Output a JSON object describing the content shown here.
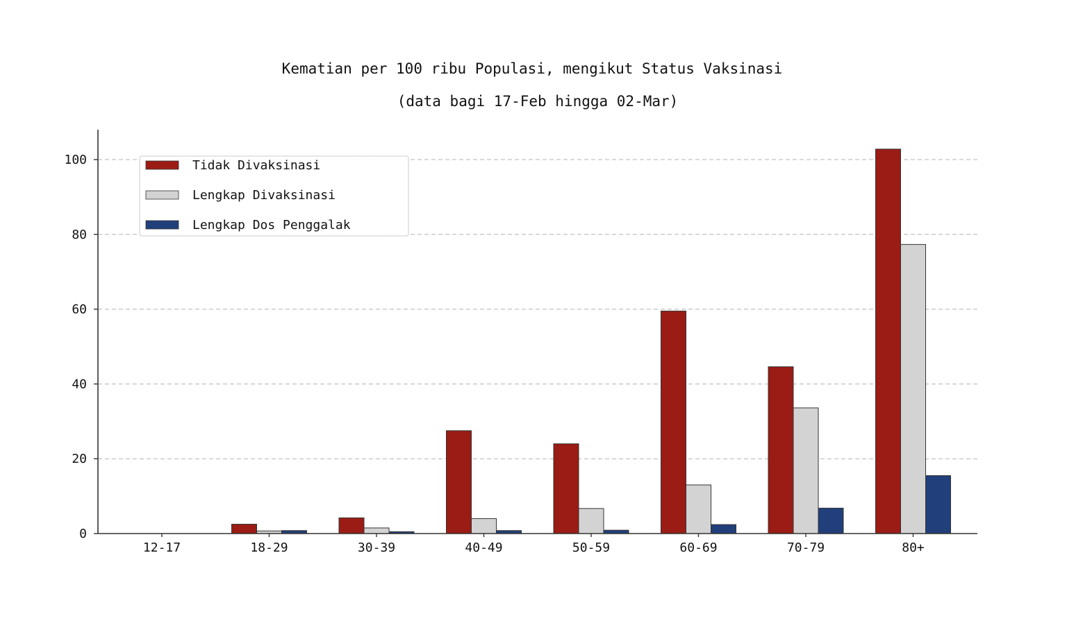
{
  "chart_data": {
    "type": "bar",
    "title": "Kematian per 100 ribu Populasi, mengikut Status Vaksinasi",
    "subtitle": "(data bagi 17-Feb hingga 02-Mar)",
    "xlabel": "",
    "ylabel": "",
    "categories": [
      "12-17",
      "18-29",
      "30-39",
      "40-49",
      "50-59",
      "60-69",
      "70-79",
      "80+"
    ],
    "series": [
      {
        "name": "Tidak Divaksinasi",
        "color": "#9b1c14",
        "values": [
          0.0,
          2.5,
          4.2,
          27.5,
          24.0,
          59.5,
          44.6,
          102.8
        ]
      },
      {
        "name": "Lengkap Divaksinasi",
        "color": "#d3d3d3",
        "values": [
          0.0,
          0.7,
          1.5,
          4.0,
          6.7,
          13.0,
          33.6,
          77.3
        ]
      },
      {
        "name": "Lengkap Dos Penggalak",
        "color": "#213f7a",
        "values": [
          0.0,
          0.8,
          0.5,
          0.8,
          0.9,
          2.4,
          6.8,
          15.5
        ]
      }
    ],
    "ylim": [
      0,
      108
    ],
    "yticks": [
      "0",
      "20",
      "40",
      "60",
      "80",
      "100"
    ],
    "grid": "horizontal dashed",
    "legend_position": "top-left"
  }
}
